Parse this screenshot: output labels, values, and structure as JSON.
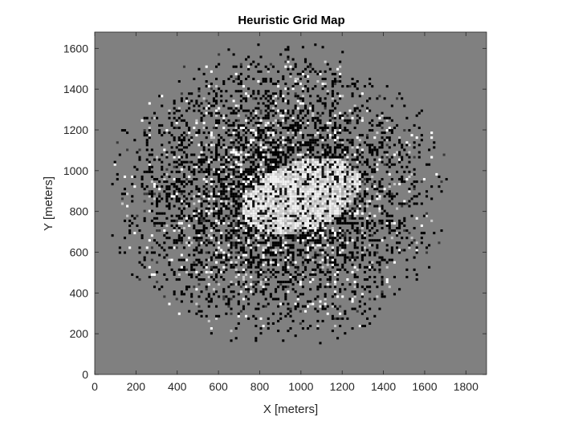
{
  "chart_data": {
    "type": "heatmap",
    "title": "Heuristic Grid Map",
    "xlabel": "X [meters]",
    "ylabel": "Y [meters]",
    "xlim": [
      0,
      1900
    ],
    "ylim": [
      0,
      1680
    ],
    "x_ticks": [
      0,
      200,
      400,
      600,
      800,
      1000,
      1200,
      1400,
      1600,
      1800
    ],
    "y_ticks": [
      0,
      200,
      400,
      600,
      800,
      1000,
      1200,
      1400,
      1600
    ],
    "x_tick_labels": [
      "0",
      "200",
      "400",
      "600",
      "800",
      "1000",
      "1200",
      "1400",
      "1600",
      "1800"
    ],
    "y_tick_labels": [
      "0",
      "200",
      "400",
      "600",
      "800",
      "1000",
      "1200",
      "1400",
      "1600"
    ],
    "colormap": "gray",
    "background_value": 0.5,
    "background_color": "#808080",
    "grid": false,
    "legend": "none",
    "mapped_region": {
      "center": [
        880,
        880
      ],
      "x_extent": [
        80,
        1800
      ],
      "y_extent": [
        40,
        1660
      ],
      "bright_core_center": [
        1000,
        870
      ],
      "bright_core_radii": [
        300,
        170
      ],
      "bright_core_angle_deg": 20
    }
  }
}
